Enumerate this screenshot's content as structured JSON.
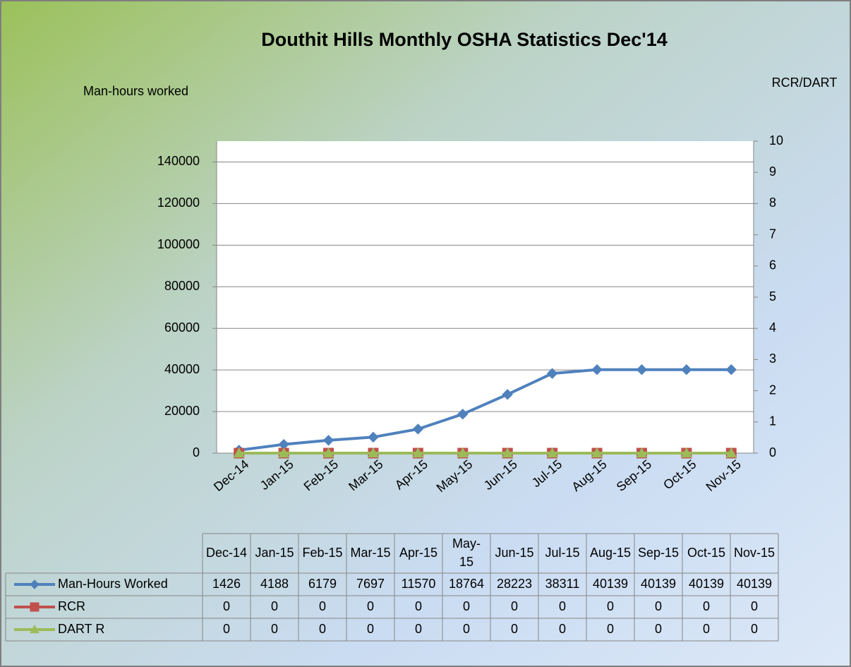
{
  "chart_data": {
    "type": "line",
    "title": "Douthit Hills Monthly OSHA Statistics Dec'14",
    "y_axis_label": "Man-hours  worked",
    "y2_axis_label": "RCR/DART",
    "categories": [
      "Dec-14",
      "Jan-15",
      "Feb-15",
      "Mar-15",
      "Apr-15",
      "May-15",
      "Jun-15",
      "Jul-15",
      "Aug-15",
      "Sep-15",
      "Oct-15",
      "Nov-15"
    ],
    "series": [
      {
        "name": "Man-Hours Worked",
        "color": "#4f81bd",
        "marker": "diamond",
        "axis": "y",
        "values": [
          1426,
          4188,
          6179,
          7697,
          11570,
          18764,
          28223,
          38311,
          40139,
          40139,
          40139,
          40139
        ]
      },
      {
        "name": "RCR",
        "color": "#c0504d",
        "marker": "square",
        "axis": "y2",
        "values": [
          0,
          0,
          0,
          0,
          0,
          0,
          0,
          0,
          0,
          0,
          0,
          0
        ]
      },
      {
        "name": "DART R",
        "color": "#9bbb59",
        "marker": "triangle",
        "axis": "y2",
        "values": [
          0,
          0,
          0,
          0,
          0,
          0,
          0,
          0,
          0,
          0,
          0,
          0
        ]
      }
    ],
    "ylim": [
      0,
      150000
    ],
    "yticks": [
      0,
      20000,
      40000,
      60000,
      80000,
      100000,
      120000,
      140000
    ],
    "y2lim": [
      0,
      10
    ],
    "y2ticks": [
      0,
      1,
      2,
      3,
      4,
      5,
      6,
      7,
      8,
      9,
      10
    ],
    "grid": true,
    "data_table": true
  }
}
